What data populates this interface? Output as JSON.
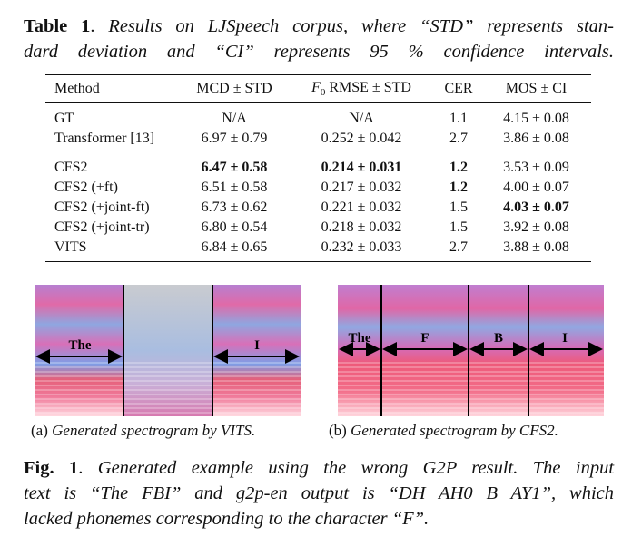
{
  "table_caption": {
    "label": "Table 1",
    "sep": ".",
    "lines": [
      "Results on LJSpeech corpus, where “STD” represents stan-",
      "dard deviation and “CI” represents 95 % confidence intervals."
    ]
  },
  "table": {
    "header": [
      "Method",
      "MCD ± STD",
      {
        "main": "F",
        "sub": "0",
        "rest": " RMSE ± STD"
      },
      "CER",
      "MOS ± CI"
    ],
    "groups": [
      [
        [
          "GT",
          "N/A",
          "N/A",
          "1.1",
          "4.15 ± 0.08"
        ],
        [
          "Transformer [13]",
          "6.97 ± 0.79",
          "0.252 ± 0.042",
          "2.7",
          "3.86 ± 0.08"
        ]
      ],
      [
        [
          "CFS2",
          "6.47 ± 0.58",
          "0.214 ± 0.031",
          "1.2",
          "3.53 ± 0.09"
        ],
        [
          "CFS2 (+ft)",
          "6.51 ± 0.58",
          "0.217 ± 0.032",
          "1.2",
          "4.00 ± 0.07"
        ],
        [
          "CFS2 (+joint-ft)",
          "6.73 ± 0.62",
          "0.221 ± 0.032",
          "1.5",
          "4.03 ± 0.07"
        ],
        [
          "CFS2 (+joint-tr)",
          "6.80 ± 0.54",
          "0.218 ± 0.032",
          "1.5",
          "3.92 ± 0.08"
        ],
        [
          "VITS",
          "6.84 ± 0.65",
          "0.232 ± 0.033",
          "2.7",
          "3.88 ± 0.08"
        ]
      ]
    ],
    "bold": [
      [
        1,
        0,
        1
      ],
      [
        1,
        0,
        2
      ],
      [
        1,
        0,
        3
      ],
      [
        1,
        1,
        3
      ],
      [
        1,
        2,
        4
      ]
    ]
  },
  "figure": {
    "panels": [
      {
        "labels": [
          "The",
          "I"
        ],
        "caption_prefix": "(a)",
        "caption": "Generated spectrogram by VITS."
      },
      {
        "labels": [
          "The",
          "F",
          "B",
          "I"
        ],
        "caption_prefix": "(b)",
        "caption": "Generated spectrogram by CFS2."
      }
    ],
    "caption": {
      "label": "Fig. 1",
      "sep": ".",
      "lines": [
        "Generated example using the wrong G2P result. The input",
        "text is “The FBI” and g2p-en output is “DH AH0 B AY1”, which",
        "lacked phonemes corresponding to the character “F”."
      ]
    }
  }
}
